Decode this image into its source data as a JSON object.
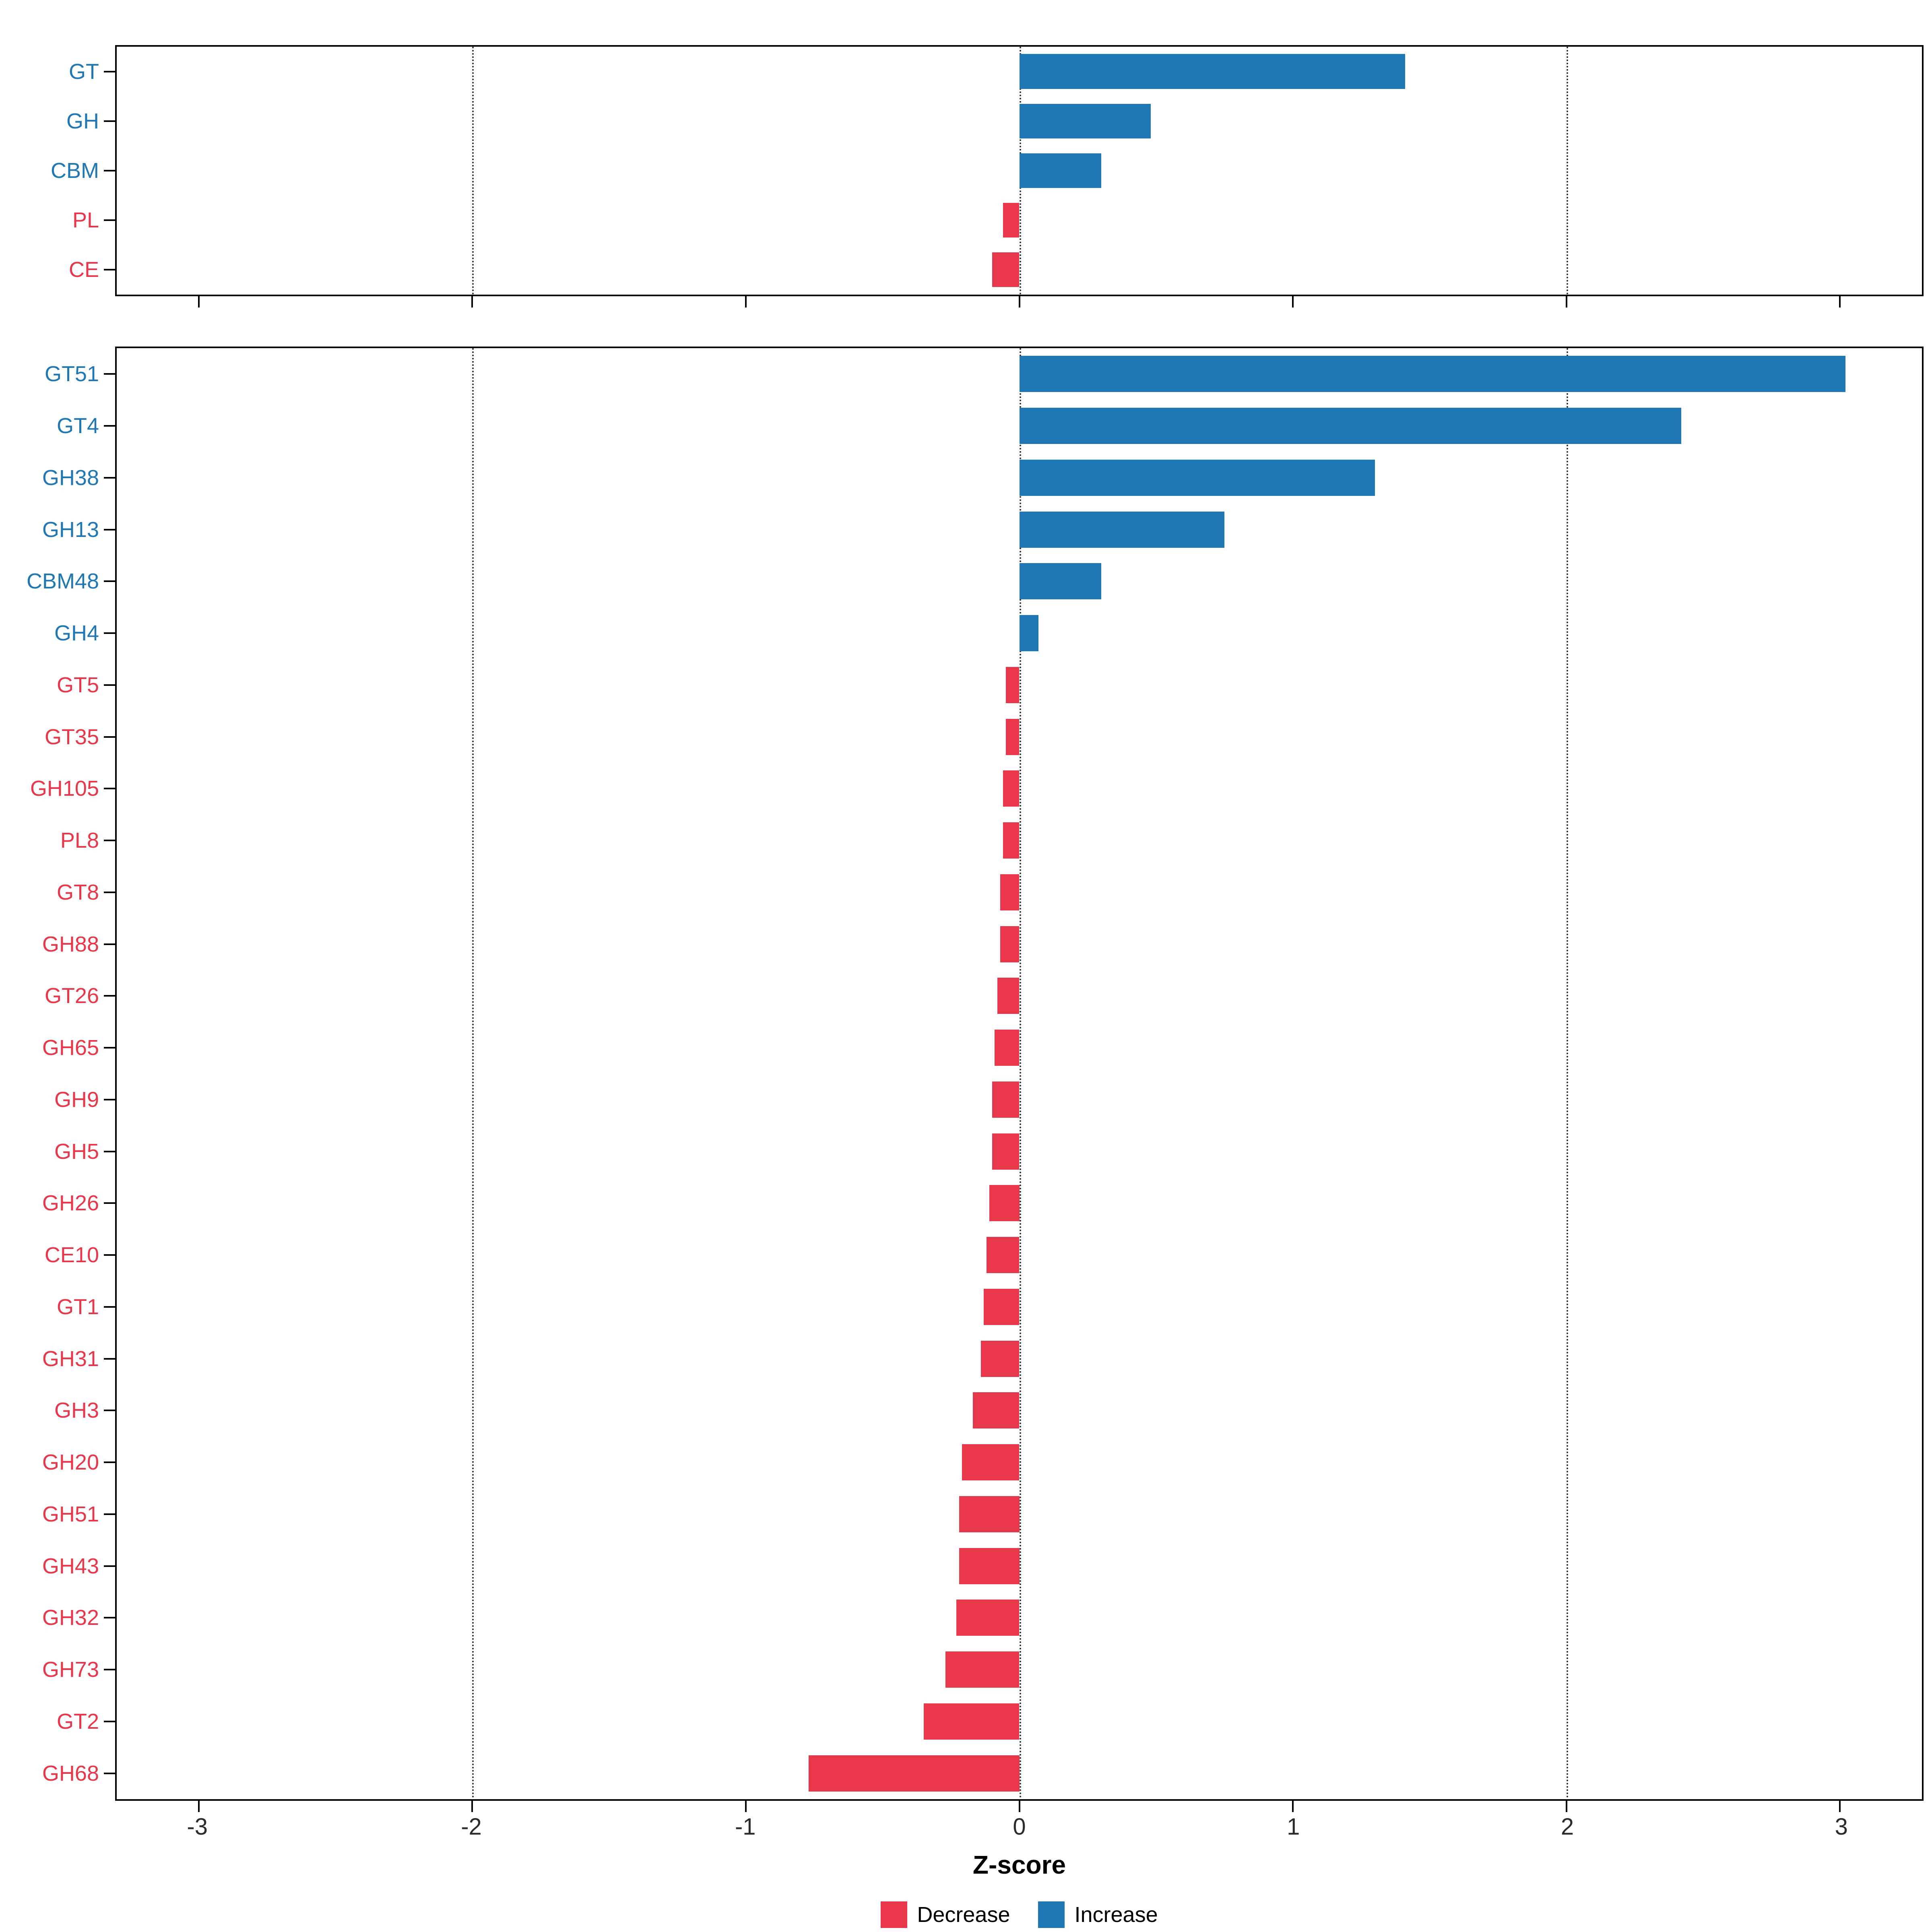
{
  "colors": {
    "increase": "#1F78B4",
    "decrease": "#E8364A",
    "grid": "#2b2b2b"
  },
  "axis": {
    "xlabel": "Z-score",
    "xlim": [
      -3.3,
      3.3
    ],
    "ticks": [
      -3,
      -2,
      -1,
      0,
      1,
      2,
      3
    ],
    "tick_labels": [
      "-3",
      "-2",
      "-1",
      "0",
      "1",
      "2",
      "3"
    ],
    "gridlines": [
      -2,
      0,
      2
    ]
  },
  "legend": {
    "items": [
      {
        "label": "Decrease",
        "color_key": "decrease"
      },
      {
        "label": "Increase",
        "color_key": "increase"
      }
    ]
  },
  "chart_data": [
    {
      "type": "bar",
      "orientation": "horizontal",
      "panel": "cazyme-class-level",
      "xlabel": "Z-score",
      "xlim": [
        -3.3,
        3.3
      ],
      "categories": [
        "GT",
        "GH",
        "CBM",
        "PL",
        "CE"
      ],
      "values": [
        1.41,
        0.48,
        0.3,
        -0.06,
        -0.1
      ]
    },
    {
      "type": "bar",
      "orientation": "horizontal",
      "panel": "cazyme-family-level",
      "xlabel": "Z-score",
      "xlim": [
        -3.3,
        3.3
      ],
      "categories": [
        "GT51",
        "GT4",
        "GH38",
        "GH13",
        "CBM48",
        "GH4",
        "GT5",
        "GT35",
        "GH105",
        "PL8",
        "GT8",
        "GH88",
        "GT26",
        "GH65",
        "GH9",
        "GH5",
        "GH26",
        "CE10",
        "GT1",
        "GH31",
        "GH3",
        "GH20",
        "GH51",
        "GH43",
        "GH32",
        "GH73",
        "GT2",
        "GH68"
      ],
      "values": [
        3.02,
        2.42,
        1.3,
        0.75,
        0.3,
        0.07,
        -0.05,
        -0.05,
        -0.06,
        -0.06,
        -0.07,
        -0.07,
        -0.08,
        -0.09,
        -0.1,
        -0.1,
        -0.11,
        -0.12,
        -0.13,
        -0.14,
        -0.17,
        -0.21,
        -0.22,
        -0.22,
        -0.23,
        -0.27,
        -0.35,
        -0.77
      ]
    }
  ]
}
